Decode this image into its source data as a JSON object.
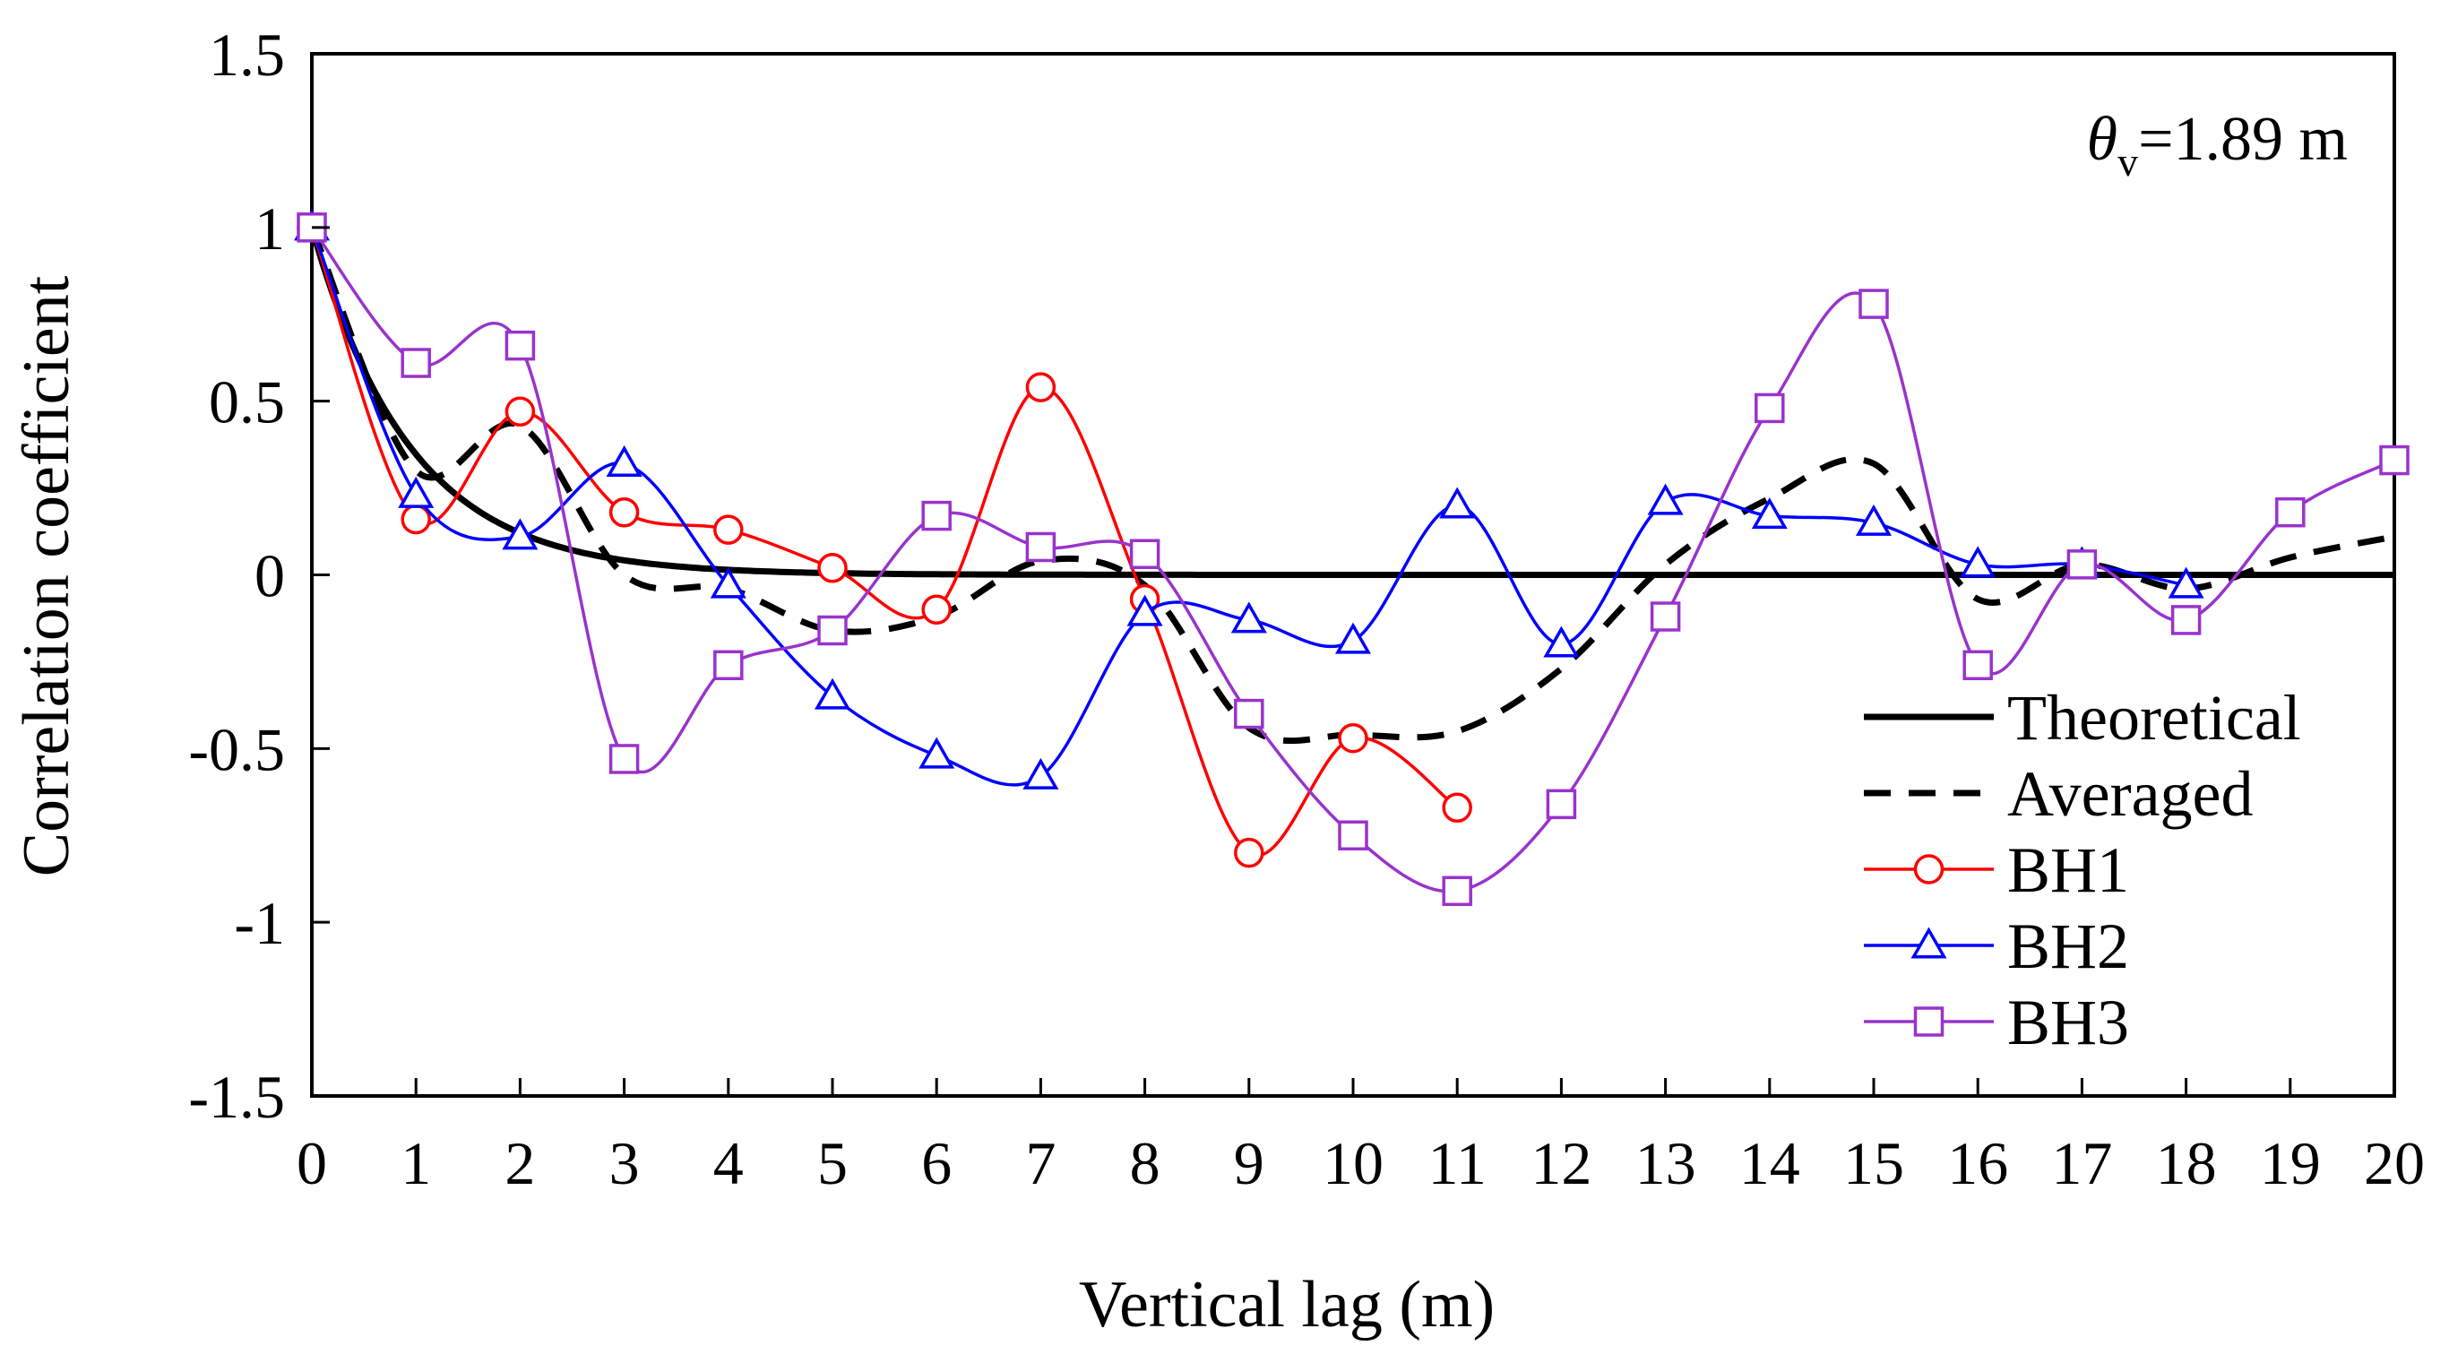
{
  "chart_data": {
    "type": "line",
    "title": "",
    "xlabel": "Vertical lag (m)",
    "ylabel": "Correlation coefficient",
    "xlim": [
      0,
      20
    ],
    "ylim": [
      -1.5,
      1.5
    ],
    "x_ticks": [
      0,
      1,
      2,
      3,
      4,
      5,
      6,
      7,
      8,
      9,
      10,
      11,
      12,
      13,
      14,
      15,
      16,
      17,
      18,
      19,
      20
    ],
    "y_ticks": [
      1.5,
      1,
      0.5,
      0,
      -0.5,
      -1,
      -1.5
    ],
    "y_tick_labels": [
      "1.5",
      "1",
      "0.5",
      "0",
      "-0.5",
      "-1",
      "-1.5"
    ],
    "grid": false,
    "legend_position": "bottom-right",
    "annotation": {
      "symbol": "θ",
      "subscript": "v",
      "value_text": "=1.89 m",
      "theta_v": 1.89
    },
    "series": [
      {
        "name": "Theoretical",
        "style": "solid",
        "color": "#000000",
        "marker": "none",
        "function": "exp(-2*|x|/theta_v)",
        "theta_v": 1.89
      },
      {
        "name": "Averaged",
        "style": "dashed",
        "color": "#000000",
        "marker": "none",
        "x": [
          0,
          1,
          2,
          3,
          4,
          5,
          6,
          7,
          8,
          9,
          10,
          11,
          12,
          13,
          14,
          15,
          16,
          17,
          18,
          19,
          20
        ],
        "values": [
          1.0,
          0.3,
          0.43,
          0.0,
          -0.04,
          -0.16,
          -0.12,
          0.04,
          -0.03,
          -0.44,
          -0.46,
          -0.45,
          -0.27,
          0.03,
          0.22,
          0.32,
          -0.07,
          0.03,
          -0.04,
          0.05,
          0.11
        ]
      },
      {
        "name": "BH1",
        "style": "solid",
        "color": "#ff0000",
        "marker": "circle",
        "x": [
          0,
          1,
          2,
          3,
          4,
          5,
          6,
          7,
          8,
          9,
          10,
          11
        ],
        "values": [
          1.0,
          0.16,
          0.47,
          0.18,
          0.13,
          0.02,
          -0.1,
          0.54,
          -0.07,
          -0.8,
          -0.47,
          -0.67
        ]
      },
      {
        "name": "BH2",
        "style": "solid",
        "color": "#0000ff",
        "marker": "triangle",
        "x": [
          0,
          1,
          2,
          3,
          4,
          5,
          6,
          7,
          8,
          9,
          10,
          11,
          12,
          13,
          14,
          15,
          16,
          17,
          18
        ],
        "values": [
          1.0,
          0.23,
          0.11,
          0.32,
          -0.03,
          -0.35,
          -0.52,
          -0.58,
          -0.11,
          -0.13,
          -0.19,
          0.2,
          -0.2,
          0.21,
          0.17,
          0.15,
          0.03,
          0.03,
          -0.03
        ]
      },
      {
        "name": "BH3",
        "style": "solid",
        "color": "#9933cc",
        "marker": "square",
        "x": [
          0,
          1,
          2,
          3,
          4,
          5,
          6,
          7,
          8,
          9,
          10,
          11,
          12,
          13,
          14,
          15,
          16,
          17,
          18,
          19,
          20
        ],
        "values": [
          1.0,
          0.61,
          0.66,
          -0.53,
          -0.26,
          -0.16,
          0.17,
          0.08,
          0.06,
          -0.4,
          -0.75,
          -0.91,
          -0.66,
          -0.12,
          0.48,
          0.78,
          -0.26,
          0.03,
          -0.13,
          0.18,
          0.33
        ]
      }
    ]
  }
}
